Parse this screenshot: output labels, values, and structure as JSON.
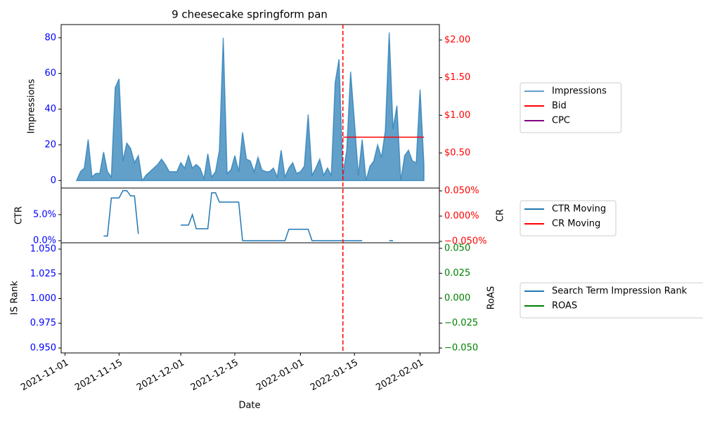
{
  "chart_data": {
    "type": "line",
    "title": "9 cheesecake springform pan",
    "xlabel": "Date",
    "xlim": [
      "2021-10-31",
      "2022-02-06"
    ],
    "xticks": [
      "2021-11-01",
      "2021-11-15",
      "2021-12-01",
      "2021-12-15",
      "2022-01-01",
      "2022-01-15",
      "2022-02-01"
    ],
    "vline": "2022-01-12",
    "vline_color": "red",
    "x": [
      "2021-11-04",
      "2021-11-05",
      "2021-11-06",
      "2021-11-07",
      "2021-11-08",
      "2021-11-09",
      "2021-11-10",
      "2021-11-11",
      "2021-11-12",
      "2021-11-13",
      "2021-11-14",
      "2021-11-15",
      "2021-11-16",
      "2021-11-17",
      "2021-11-18",
      "2021-11-19",
      "2021-11-20",
      "2021-11-21",
      "2021-11-22",
      "2021-11-23",
      "2021-11-24",
      "2021-11-25",
      "2021-11-26",
      "2021-11-27",
      "2021-11-28",
      "2021-11-29",
      "2021-11-30",
      "2021-12-01",
      "2021-12-02",
      "2021-12-03",
      "2021-12-04",
      "2021-12-05",
      "2021-12-06",
      "2021-12-07",
      "2021-12-08",
      "2021-12-09",
      "2021-12-10",
      "2021-12-11",
      "2021-12-12",
      "2021-12-13",
      "2021-12-14",
      "2021-12-15",
      "2021-12-16",
      "2021-12-17",
      "2021-12-18",
      "2021-12-19",
      "2021-12-20",
      "2021-12-21",
      "2021-12-22",
      "2021-12-23",
      "2021-12-24",
      "2021-12-25",
      "2021-12-26",
      "2021-12-27",
      "2021-12-28",
      "2021-12-29",
      "2021-12-30",
      "2021-12-31",
      "2022-01-01",
      "2022-01-02",
      "2022-01-03",
      "2022-01-04",
      "2022-01-05",
      "2022-01-06",
      "2022-01-07",
      "2022-01-08",
      "2022-01-09",
      "2022-01-10",
      "2022-01-11",
      "2022-01-12",
      "2022-01-13",
      "2022-01-14",
      "2022-01-15",
      "2022-01-16",
      "2022-01-17",
      "2022-01-18",
      "2022-01-19",
      "2022-01-20",
      "2022-01-21",
      "2022-01-22",
      "2022-01-23",
      "2022-01-24",
      "2022-01-25",
      "2022-01-26",
      "2022-01-27",
      "2022-01-28",
      "2022-01-29",
      "2022-01-30",
      "2022-01-31",
      "2022-02-01",
      "2022-02-02"
    ],
    "panels": [
      {
        "ylabel": "Impressions",
        "ylim": [
          -4.2,
          87.4
        ],
        "yticks": [
          0,
          20,
          40,
          60,
          80
        ],
        "ytick_color": "blue",
        "y2lim": [
          0.034,
          2.205
        ],
        "y2ticks": [
          {
            "value": 0.5,
            "label": "$0.50"
          },
          {
            "value": 1.0,
            "label": "$1.00"
          },
          {
            "value": 1.5,
            "label": "$1.50"
          },
          {
            "value": 2.0,
            "label": "$2.00"
          }
        ],
        "y2tick_color": "red",
        "series": [
          {
            "name": "Impressions",
            "type": "area",
            "color": "#1f77b4",
            "alpha": 0.7,
            "values": [
              0,
              5,
              7,
              23,
              2,
              4,
              4,
              16,
              5,
              2,
              52,
              57,
              11,
              21,
              18,
              10,
              14,
              0,
              3,
              5,
              7,
              9,
              12,
              9,
              5,
              5,
              5,
              10,
              7,
              14,
              7,
              9,
              7,
              1,
              15,
              2,
              5,
              17,
              80,
              4,
              6,
              14,
              5,
              27,
              12,
              11,
              5,
              13,
              6,
              5,
              5,
              7,
              2,
              17,
              2,
              7,
              10,
              4,
              5,
              8,
              37,
              3,
              7,
              12,
              3,
              7,
              3,
              55,
              68,
              3,
              17,
              61,
              33,
              3,
              23,
              0,
              8,
              11,
              20,
              13,
              28,
              83,
              29,
              42,
              0,
              14,
              17,
              11,
              10,
              51,
              9
            ]
          },
          {
            "name": "Bid",
            "type": "line",
            "color": "red",
            "axis": "y2",
            "x": [
              "2022-01-12",
              "2022-02-02"
            ],
            "values": [
              0.71,
              0.71
            ]
          },
          {
            "name": "CPC",
            "type": "line",
            "color": "purple",
            "axis": "y2",
            "x": [],
            "values": []
          }
        ]
      },
      {
        "ylabel": "CTR",
        "ylim": [
          -0.4,
          10.1
        ],
        "yticks": [
          {
            "value": 0,
            "label": "0.0%"
          },
          {
            "value": 5,
            "label": "5.0%"
          }
        ],
        "ytick_color": "blue",
        "y2label": "CR",
        "y2lim": [
          -0.0528,
          0.0556
        ],
        "y2ticks": [
          {
            "value": -0.05,
            "label": "−0.050%"
          },
          {
            "value": 0,
            "label": "0.000%"
          },
          {
            "value": 0.05,
            "label": "0.050%"
          }
        ],
        "y2tick_color": "red",
        "series": [
          {
            "name": "CTR Moving",
            "type": "line",
            "color": "#1f77b4",
            "values": [
              null,
              null,
              null,
              null,
              null,
              null,
              null,
              0.9,
              0.9,
              8.2,
              8.2,
              8.2,
              9.6,
              9.6,
              8.6,
              8.6,
              1.3,
              null,
              null,
              null,
              null,
              null,
              null,
              null,
              null,
              null,
              null,
              3.0,
              3.0,
              3.0,
              5.0,
              2.3,
              2.3,
              2.3,
              2.3,
              9.2,
              9.2,
              7.4,
              7.4,
              7.4,
              7.4,
              7.4,
              7.4,
              0,
              0,
              0,
              0,
              0,
              0,
              0,
              0,
              0,
              0,
              0,
              0,
              2.2,
              2.2,
              2.2,
              2.2,
              2.2,
              2.2,
              0,
              0,
              0,
              0,
              0,
              0,
              0,
              0,
              0,
              0,
              0,
              0,
              0,
              0,
              null,
              null,
              null,
              null,
              null,
              null,
              0,
              0,
              null,
              null,
              null,
              null,
              null,
              null,
              null,
              null
            ]
          },
          {
            "name": "CR Moving",
            "type": "line",
            "color": "red",
            "axis": "y2",
            "x": [],
            "values": []
          }
        ]
      },
      {
        "ylabel": "IS Rank",
        "ylim": [
          0.945,
          1.0564
        ],
        "yticks": [
          {
            "value": 0.95,
            "label": "0.950"
          },
          {
            "value": 0.975,
            "label": "0.975"
          },
          {
            "value": 1.0,
            "label": "1.000"
          },
          {
            "value": 1.025,
            "label": "1.025"
          },
          {
            "value": 1.05,
            "label": "1.050"
          }
        ],
        "ytick_color": "blue",
        "y2label": "RoAS",
        "y2lim": [
          -0.0549,
          0.0556
        ],
        "y2ticks": [
          {
            "value": -0.05,
            "label": "−0.050"
          },
          {
            "value": -0.025,
            "label": "−0.025"
          },
          {
            "value": 0,
            "label": "0.000"
          },
          {
            "value": 0.025,
            "label": "0.025"
          },
          {
            "value": 0.05,
            "label": "0.050"
          }
        ],
        "y2tick_color": "green",
        "series": [
          {
            "name": "Search Term Impression Rank",
            "type": "line",
            "color": "#1f77b4",
            "x": [],
            "values": []
          },
          {
            "name": "ROAS",
            "type": "line",
            "color": "green",
            "axis": "y2",
            "x": [],
            "values": []
          }
        ]
      }
    ]
  }
}
